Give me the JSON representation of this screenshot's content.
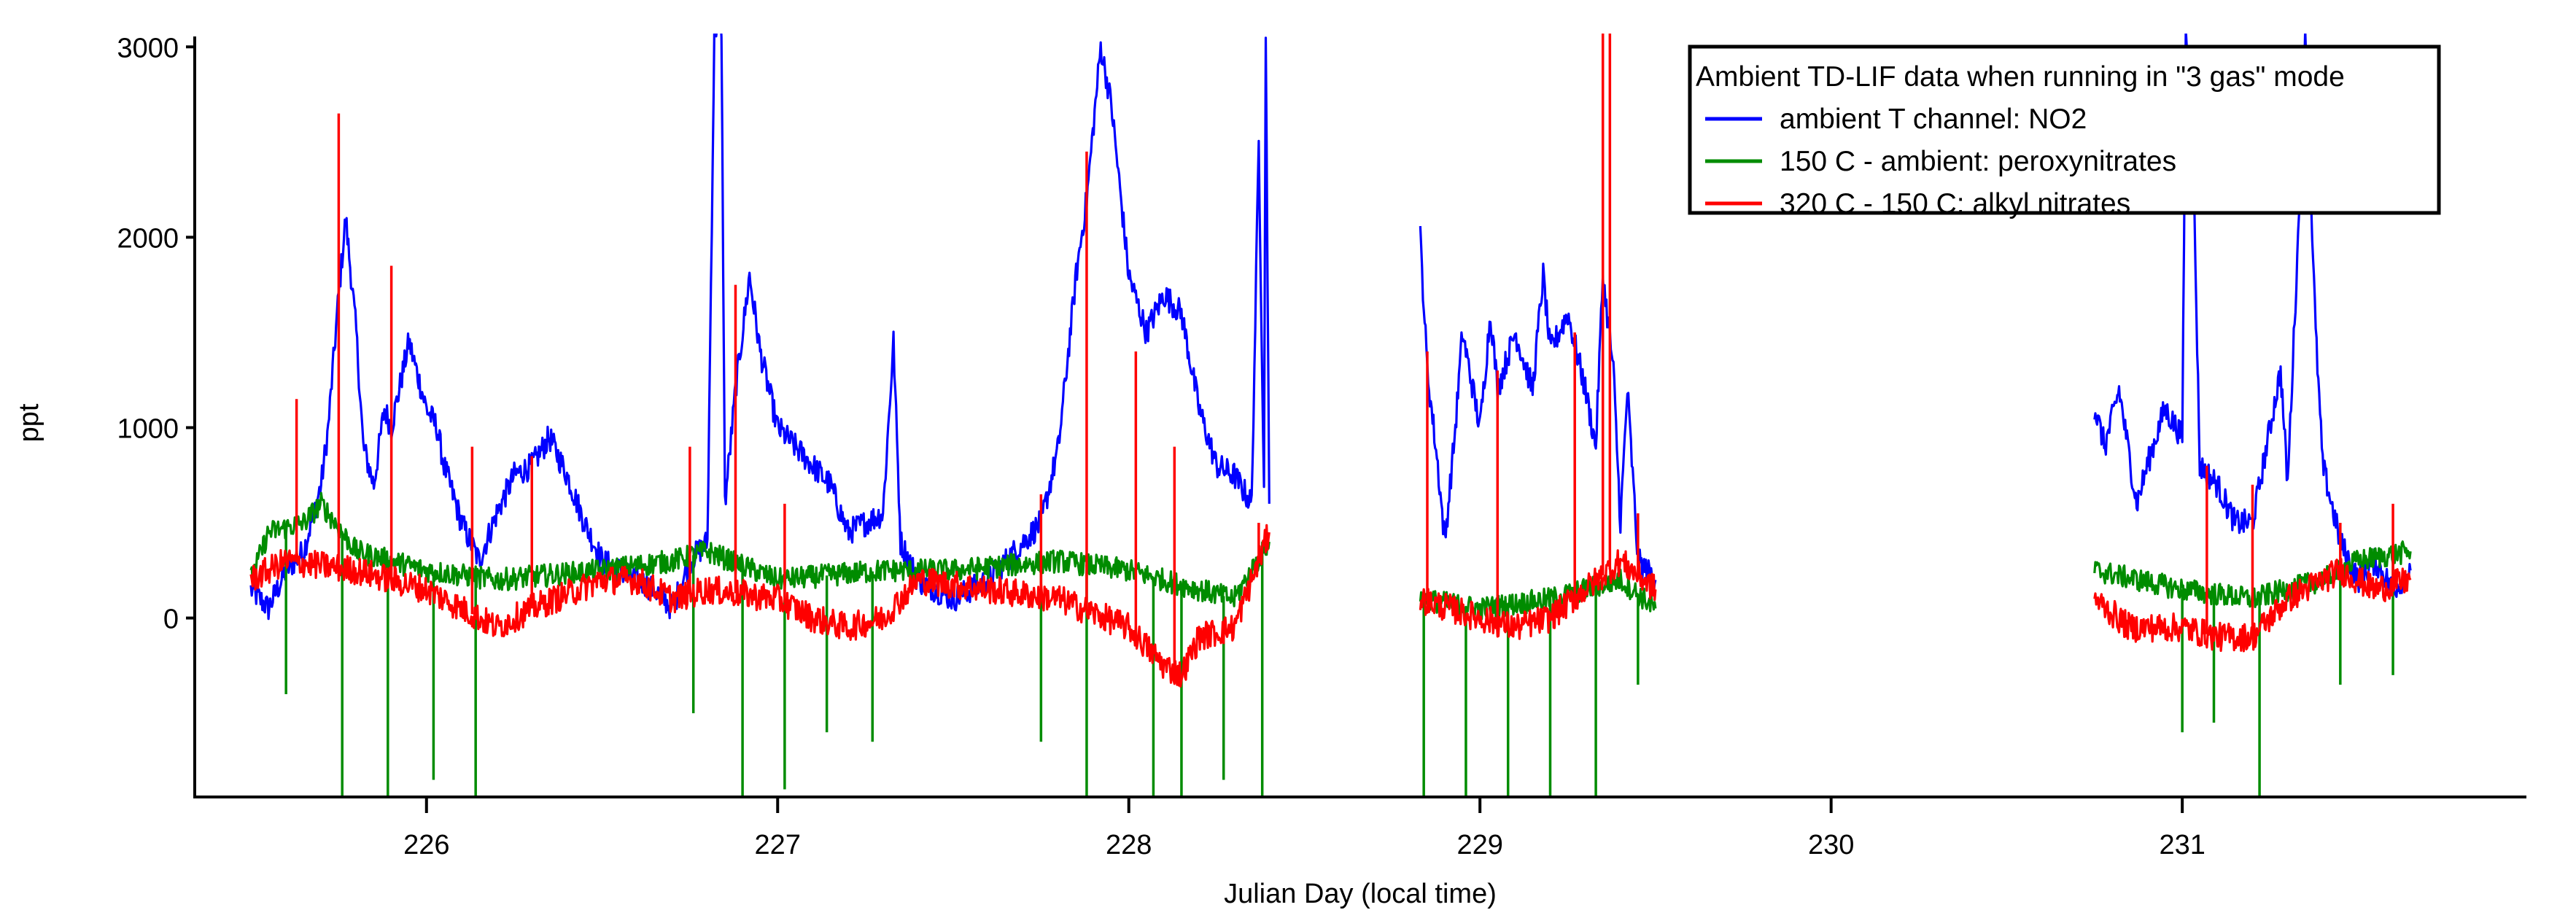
{
  "chart_data": {
    "type": "line",
    "title": "",
    "xlabel": "Julian Day (local time)",
    "ylabel": "ppt",
    "xlim": [
      225.34,
      231.98
    ],
    "ylim": [
      -940,
      3070
    ],
    "xticks": [
      226,
      227,
      228,
      229,
      230,
      231
    ],
    "yticks": [
      0,
      1000,
      2000,
      3000
    ],
    "grid": false,
    "legend": {
      "title": "Ambient TD-LIF data when running in \"3 gas\" mode",
      "placement": "top-right"
    },
    "series": [
      {
        "name": "ambient T channel: NO2",
        "color": "#0000ff",
        "noise_ppt": 70,
        "segments": [
          [
            [
              225.5,
              150
            ],
            [
              225.55,
              50
            ],
            [
              225.6,
              250
            ],
            [
              225.65,
              350
            ],
            [
              225.7,
              700
            ],
            [
              225.72,
              1000
            ],
            [
              225.75,
              1700
            ],
            [
              225.77,
              2100
            ],
            [
              225.8,
              1500
            ],
            [
              225.82,
              900
            ],
            [
              225.85,
              700
            ],
            [
              225.88,
              1100
            ],
            [
              225.9,
              1000
            ],
            [
              225.95,
              1450
            ],
            [
              226.0,
              1100
            ],
            [
              226.03,
              1000
            ],
            [
              226.05,
              800
            ],
            [
              226.1,
              500
            ],
            [
              226.15,
              300
            ],
            [
              226.2,
              550
            ],
            [
              226.25,
              750
            ],
            [
              226.3,
              800
            ],
            [
              226.35,
              950
            ],
            [
              226.4,
              750
            ],
            [
              226.45,
              500
            ],
            [
              226.5,
              300
            ],
            [
              226.55,
              250
            ],
            [
              226.6,
              200
            ],
            [
              226.65,
              150
            ],
            [
              226.7,
              50
            ],
            [
              226.75,
              300
            ],
            [
              226.8,
              400
            ],
            [
              226.82,
              3100
            ],
            [
              226.84,
              3100
            ],
            [
              226.85,
              600
            ],
            [
              226.88,
              1200
            ],
            [
              226.92,
              1800
            ],
            [
              226.95,
              1400
            ],
            [
              227.0,
              1000
            ],
            [
              227.05,
              900
            ],
            [
              227.1,
              800
            ],
            [
              227.15,
              700
            ],
            [
              227.2,
              450
            ],
            [
              227.25,
              500
            ],
            [
              227.3,
              550
            ],
            [
              227.33,
              1450
            ],
            [
              227.35,
              400
            ],
            [
              227.4,
              200
            ],
            [
              227.45,
              150
            ],
            [
              227.5,
              100
            ],
            [
              227.55,
              150
            ],
            [
              227.6,
              200
            ],
            [
              227.65,
              300
            ],
            [
              227.7,
              400
            ],
            [
              227.75,
              500
            ],
            [
              227.8,
              900
            ],
            [
              227.85,
              1800
            ],
            [
              227.88,
              2200
            ],
            [
              227.92,
              3000
            ],
            [
              227.95,
              2700
            ],
            [
              228.0,
              1800
            ],
            [
              228.05,
              1500
            ],
            [
              228.1,
              1700
            ],
            [
              228.15,
              1600
            ],
            [
              228.2,
              1100
            ],
            [
              228.25,
              800
            ],
            [
              228.3,
              750
            ],
            [
              228.35,
              600
            ],
            [
              228.37,
              2500
            ],
            [
              228.385,
              700
            ],
            [
              228.39,
              3100
            ],
            [
              228.4,
              600
            ]
          ],
          [
            [
              228.83,
              2000
            ],
            [
              228.85,
              1300
            ],
            [
              228.88,
              800
            ],
            [
              228.9,
              400
            ],
            [
              228.93,
              1000
            ],
            [
              228.95,
              1500
            ],
            [
              229.0,
              1000
            ],
            [
              229.03,
              1600
            ],
            [
              229.05,
              1200
            ],
            [
              229.1,
              1500
            ],
            [
              229.15,
              1200
            ],
            [
              229.18,
              1800
            ],
            [
              229.2,
              1400
            ],
            [
              229.25,
              1600
            ],
            [
              229.3,
              1200
            ],
            [
              229.33,
              900
            ],
            [
              229.35,
              1800
            ],
            [
              229.38,
              1300
            ],
            [
              229.4,
              500
            ],
            [
              229.42,
              1200
            ],
            [
              229.45,
              300
            ],
            [
              229.5,
              200
            ]
          ],
          [
            [
              230.75,
              1100
            ],
            [
              230.78,
              900
            ],
            [
              230.82,
              1200
            ],
            [
              230.87,
              600
            ],
            [
              230.9,
              800
            ],
            [
              230.95,
              1100
            ],
            [
              231.0,
              950
            ],
            [
              231.01,
              3100
            ],
            [
              231.03,
              2500
            ],
            [
              231.05,
              800
            ],
            [
              231.1,
              700
            ],
            [
              231.15,
              500
            ],
            [
              231.2,
              500
            ],
            [
              231.25,
              1000
            ],
            [
              231.28,
              1300
            ],
            [
              231.3,
              700
            ],
            [
              231.33,
              2000
            ],
            [
              231.35,
              3100
            ],
            [
              231.38,
              1500
            ],
            [
              231.4,
              800
            ],
            [
              231.45,
              400
            ],
            [
              231.5,
              200
            ],
            [
              231.55,
              300
            ],
            [
              231.6,
              150
            ],
            [
              231.65,
              250
            ]
          ]
        ],
        "spikes": []
      },
      {
        "name": "150 C - ambient: peroxynitrates",
        "color": "#008c00",
        "noise_ppt": 60,
        "segments": [
          [
            [
              225.5,
              200
            ],
            [
              225.55,
              450
            ],
            [
              225.65,
              500
            ],
            [
              225.7,
              600
            ],
            [
              225.8,
              350
            ],
            [
              226.0,
              250
            ],
            [
              226.2,
              200
            ],
            [
              226.5,
              250
            ],
            [
              226.7,
              300
            ],
            [
              226.8,
              350
            ],
            [
              227.0,
              200
            ],
            [
              227.3,
              250
            ],
            [
              227.5,
              250
            ],
            [
              227.8,
              300
            ],
            [
              228.0,
              250
            ],
            [
              228.2,
              150
            ],
            [
              228.3,
              100
            ],
            [
              228.4,
              400
            ]
          ],
          [
            [
              228.83,
              100
            ],
            [
              229.0,
              50
            ],
            [
              229.2,
              100
            ],
            [
              229.4,
              200
            ],
            [
              229.5,
              50
            ]
          ],
          [
            [
              230.75,
              250
            ],
            [
              231.0,
              150
            ],
            [
              231.2,
              100
            ],
            [
              231.4,
              200
            ],
            [
              231.5,
              300
            ],
            [
              231.65,
              350
            ]
          ]
        ],
        "spikes": [
          [
            225.6,
            -400
          ],
          [
            225.76,
            -950
          ],
          [
            225.89,
            -950
          ],
          [
            226.02,
            -850
          ],
          [
            226.14,
            -950
          ],
          [
            226.76,
            -500
          ],
          [
            226.9,
            -950
          ],
          [
            227.02,
            -900
          ],
          [
            227.14,
            -600
          ],
          [
            227.27,
            -650
          ],
          [
            227.75,
            -650
          ],
          [
            227.88,
            -950
          ],
          [
            228.07,
            -950
          ],
          [
            228.15,
            -950
          ],
          [
            228.27,
            -850
          ],
          [
            228.38,
            -950
          ],
          [
            228.84,
            -950
          ],
          [
            228.96,
            -950
          ],
          [
            229.08,
            -950
          ],
          [
            229.2,
            -950
          ],
          [
            229.33,
            -950
          ],
          [
            229.45,
            -350
          ],
          [
            231.0,
            -600
          ],
          [
            231.09,
            -550
          ],
          [
            231.22,
            -950
          ],
          [
            231.45,
            -350
          ],
          [
            231.6,
            -300
          ]
        ]
      },
      {
        "name": "320 C - 150 C: alkyl nitrates",
        "color": "#ff0000",
        "noise_ppt": 75,
        "segments": [
          [
            [
              225.5,
              200
            ],
            [
              225.6,
              300
            ],
            [
              225.8,
              250
            ],
            [
              226.0,
              150
            ],
            [
              226.1,
              50
            ],
            [
              226.2,
              -50
            ],
            [
              226.3,
              50
            ],
            [
              226.5,
              200
            ],
            [
              226.6,
              200
            ],
            [
              226.7,
              100
            ],
            [
              226.8,
              150
            ],
            [
              227.0,
              100
            ],
            [
              227.1,
              0
            ],
            [
              227.2,
              -50
            ],
            [
              227.3,
              0
            ],
            [
              227.4,
              200
            ],
            [
              227.6,
              150
            ],
            [
              227.8,
              100
            ],
            [
              228.0,
              -50
            ],
            [
              228.1,
              -250
            ],
            [
              228.15,
              -300
            ],
            [
              228.2,
              -100
            ],
            [
              228.3,
              -50
            ],
            [
              228.35,
              200
            ],
            [
              228.4,
              450
            ]
          ],
          [
            [
              228.83,
              100
            ],
            [
              229.0,
              0
            ],
            [
              229.1,
              -50
            ],
            [
              229.2,
              0
            ],
            [
              229.3,
              150
            ],
            [
              229.4,
              300
            ],
            [
              229.5,
              150
            ]
          ],
          [
            [
              230.75,
              100
            ],
            [
              230.85,
              -50
            ],
            [
              231.0,
              -50
            ],
            [
              231.1,
              -100
            ],
            [
              231.2,
              -100
            ],
            [
              231.3,
              100
            ],
            [
              231.45,
              250
            ],
            [
              231.55,
              150
            ],
            [
              231.65,
              200
            ]
          ]
        ],
        "spikes": [
          [
            225.63,
            1150
          ],
          [
            225.75,
            2650
          ],
          [
            225.9,
            1850
          ],
          [
            226.13,
            900
          ],
          [
            226.3,
            850
          ],
          [
            226.75,
            900
          ],
          [
            226.88,
            1750
          ],
          [
            227.02,
            600
          ],
          [
            227.75,
            650
          ],
          [
            227.88,
            2450
          ],
          [
            228.02,
            1400
          ],
          [
            228.13,
            900
          ],
          [
            228.37,
            500
          ],
          [
            228.85,
            1400
          ],
          [
            229.05,
            1300
          ],
          [
            229.27,
            1500
          ],
          [
            229.35,
            3100
          ],
          [
            229.37,
            3100
          ],
          [
            229.45,
            550
          ],
          [
            231.07,
            800
          ],
          [
            231.2,
            700
          ],
          [
            231.45,
            500
          ],
          [
            231.6,
            600
          ]
        ]
      }
    ]
  }
}
